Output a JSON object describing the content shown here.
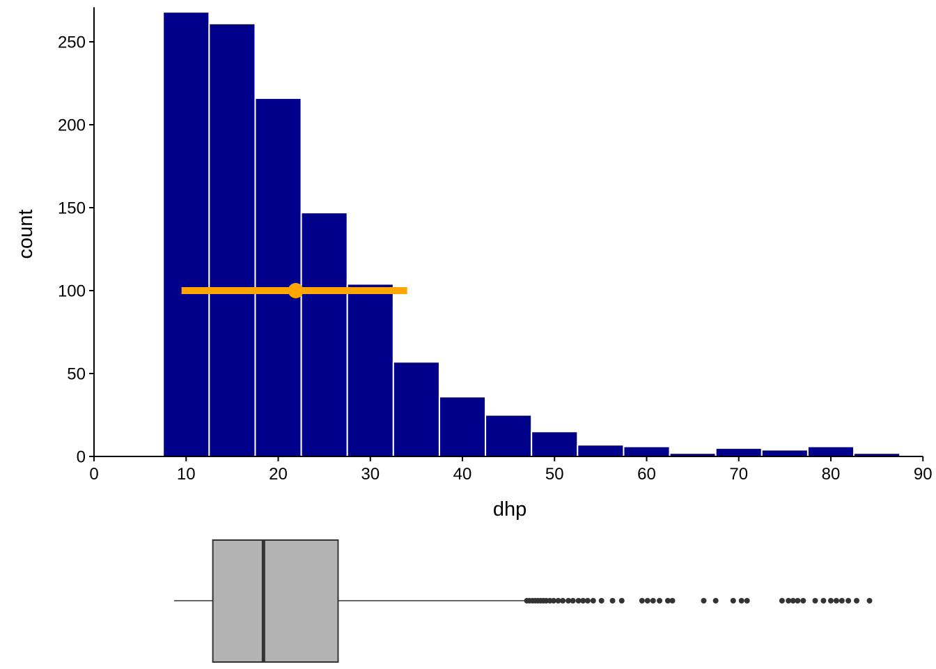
{
  "chart_data": [
    {
      "type": "bar",
      "subtype": "histogram",
      "xlabel": "dhp",
      "ylabel": "count",
      "xlim": [
        0,
        90
      ],
      "ylim": [
        0,
        270
      ],
      "x_ticks": [
        0,
        10,
        20,
        30,
        40,
        50,
        60,
        70,
        80,
        90
      ],
      "y_ticks": [
        0,
        50,
        100,
        150,
        200,
        250
      ],
      "bin_width": 5,
      "bins": [
        {
          "x0": 7.5,
          "x1": 12.5,
          "count": 268
        },
        {
          "x0": 12.5,
          "x1": 17.5,
          "count": 261
        },
        {
          "x0": 17.5,
          "x1": 22.5,
          "count": 216
        },
        {
          "x0": 22.5,
          "x1": 27.5,
          "count": 147
        },
        {
          "x0": 27.5,
          "x1": 32.5,
          "count": 104
        },
        {
          "x0": 32.5,
          "x1": 37.5,
          "count": 57
        },
        {
          "x0": 37.5,
          "x1": 42.5,
          "count": 36
        },
        {
          "x0": 42.5,
          "x1": 47.5,
          "count": 25
        },
        {
          "x0": 47.5,
          "x1": 52.5,
          "count": 15
        },
        {
          "x0": 52.5,
          "x1": 57.5,
          "count": 7
        },
        {
          "x0": 57.5,
          "x1": 62.5,
          "count": 6
        },
        {
          "x0": 62.5,
          "x1": 67.5,
          "count": 2
        },
        {
          "x0": 67.5,
          "x1": 72.5,
          "count": 5
        },
        {
          "x0": 72.5,
          "x1": 77.5,
          "count": 4
        },
        {
          "x0": 77.5,
          "x1": 82.5,
          "count": 6
        },
        {
          "x0": 82.5,
          "x1": 87.5,
          "count": 2
        }
      ],
      "bar_color": "#00008B",
      "summary_marker": {
        "center": 21.9,
        "low": 9.5,
        "high": 34,
        "y": 100,
        "color": "#FFA500"
      },
      "grid": false
    },
    {
      "type": "boxplot",
      "orientation": "horizontal",
      "shared_x_axis": true,
      "lower_whisker": 8.7,
      "q1": 12.9,
      "median": 18.4,
      "q3": 26.5,
      "upper_whisker": 46.8,
      "outliers": [
        47,
        47.3,
        47.6,
        47.9,
        48.2,
        48.5,
        48.8,
        49.1,
        49.5,
        49.9,
        50.4,
        50.9,
        51.5,
        52,
        52.6,
        53.1,
        53.6,
        54.2,
        55.1,
        56.3,
        57.3,
        59.5,
        60.1,
        60.7,
        61.4,
        62.3,
        62.8,
        66.2,
        67.5,
        69.4,
        70.3,
        70.9,
        74.7,
        75.4,
        75.9,
        76.4,
        77,
        78.3,
        79.2,
        80,
        80.6,
        81.2,
        81.9,
        82.8,
        84.2
      ],
      "box_fill": "#B3B3B3",
      "line_color": "#333333"
    }
  ]
}
